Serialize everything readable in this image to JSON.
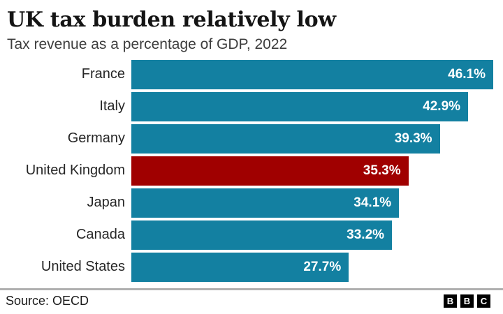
{
  "chart_data": {
    "type": "bar",
    "orientation": "horizontal",
    "title": "UK tax burden relatively low",
    "subtitle": "Tax revenue as a percentage of GDP, 2022",
    "categories": [
      "France",
      "Italy",
      "Germany",
      "United Kingdom",
      "Japan",
      "Canada",
      "United States"
    ],
    "values": [
      46.1,
      42.9,
      39.3,
      35.3,
      34.1,
      33.2,
      27.7
    ],
    "value_labels": [
      "46.1%",
      "42.9%",
      "39.3%",
      "35.3%",
      "34.1%",
      "33.2%",
      "27.7%"
    ],
    "xlabel": "",
    "ylabel": "",
    "xlim": [
      0,
      46.1
    ],
    "grid": false,
    "legend": "none",
    "bar_color": "#1380A1",
    "highlight_category": "United Kingdom",
    "highlight_color": "#A00000",
    "value_label_color": "#FFFFFF"
  },
  "footer": {
    "source": "Source: OECD",
    "logo_letters": [
      "B",
      "B",
      "C"
    ]
  }
}
